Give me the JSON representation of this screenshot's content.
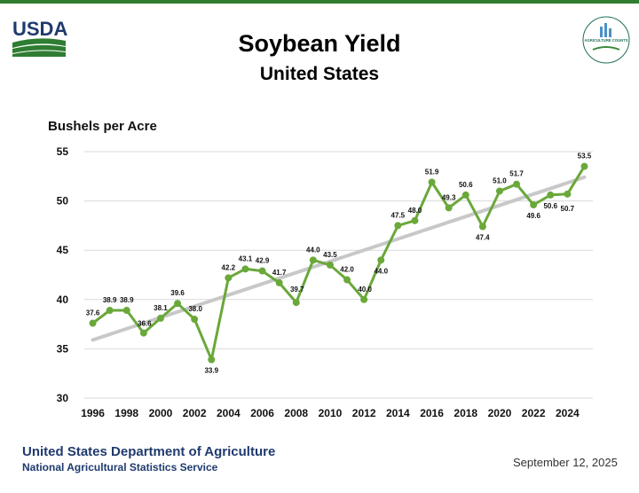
{
  "header": {
    "usda_logo_text": "USDA",
    "ag_logo_text": "AGRICULTURE COUNTS"
  },
  "colors": {
    "line": "#6aa83a",
    "trend": "#c8c8c8",
    "grid": "#d9d9d9",
    "navy": "#1f3a6e",
    "usda_green": "#2e7d32"
  },
  "footer": {
    "agency": "United States Department of Agriculture",
    "service": "National Agricultural Statistics Service",
    "date": "September 12, 2025"
  },
  "chart_data": {
    "type": "line",
    "title": "Soybean Yield",
    "subtitle": "United States",
    "ylabel": "Bushels per Acre",
    "xlabel": "",
    "ylim": [
      30,
      55
    ],
    "yticks": [
      30,
      35,
      40,
      45,
      50,
      55
    ],
    "xticks": [
      1996,
      1998,
      2000,
      2002,
      2004,
      2006,
      2008,
      2010,
      2012,
      2014,
      2016,
      2018,
      2020,
      2022,
      2024
    ],
    "grid": true,
    "series": [
      {
        "name": "Soybean Yield",
        "x": [
          1996,
          1997,
          1998,
          1999,
          2000,
          2001,
          2002,
          2003,
          2004,
          2005,
          2006,
          2007,
          2008,
          2009,
          2010,
          2011,
          2012,
          2013,
          2014,
          2015,
          2016,
          2017,
          2018,
          2019,
          2020,
          2021,
          2022,
          2023,
          2024,
          2025
        ],
        "values": [
          37.6,
          38.9,
          38.9,
          36.6,
          38.1,
          39.6,
          38.0,
          33.9,
          42.2,
          43.1,
          42.9,
          41.7,
          39.7,
          44.0,
          43.5,
          42.0,
          40.0,
          44.0,
          47.5,
          48.0,
          51.9,
          49.3,
          50.6,
          47.4,
          51.0,
          51.7,
          49.6,
          50.6,
          50.7,
          53.5
        ],
        "labels": [
          "37.6",
          "38.9",
          "38.9",
          "36.6",
          "38.1",
          "39.6",
          "38.0",
          "33.9",
          "42.2",
          "43.1",
          "42.9",
          "41.7",
          "39.7",
          "44.0",
          "43.5",
          "42.0",
          "40.0",
          "44.0",
          "47.5",
          "48.0",
          "51.9",
          "49.3",
          "50.6",
          "47.4",
          "51.0",
          "51.7",
          "49.6",
          "50.6",
          "50.7",
          "53.5"
        ]
      }
    ],
    "trend": {
      "name": "Trend",
      "x": [
        1996,
        2025
      ],
      "values": [
        35.9,
        52.4
      ]
    }
  }
}
